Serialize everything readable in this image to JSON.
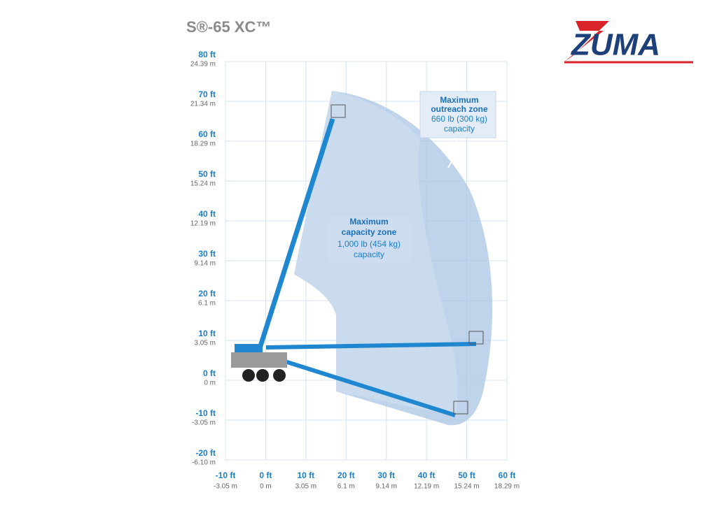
{
  "title": "S®-65 XC™",
  "logo": "ZUMA",
  "y_axis": {
    "ft": [
      "80 ft",
      "70 ft",
      "60 ft",
      "50 ft",
      "40 ft",
      "30 ft",
      "20 ft",
      "10 ft",
      "0 ft",
      "-10 ft",
      "-20 ft"
    ],
    "m": [
      "24.39 m",
      "21.34 m",
      "18.29 m",
      "15.24 m",
      "12.19 m",
      "9.14 m",
      "6.1 m",
      "3.05 m",
      "0 m",
      "-3.05 m",
      "-6.10 m"
    ]
  },
  "x_axis": {
    "ft": [
      "-10 ft",
      "0 ft",
      "10 ft",
      "20 ft",
      "30 ft",
      "40 ft",
      "50 ft",
      "60 ft"
    ],
    "m": [
      "-3.05 m",
      "0 m",
      "3.05 m",
      "6.1 m",
      "9.14 m",
      "12.19 m",
      "15.24 m",
      "18.29 m"
    ]
  },
  "outreach_zone": {
    "heading": [
      "Maximum",
      "outreach zone"
    ],
    "load": "660 lb (300 kg)",
    "note": "capacity"
  },
  "capacity_zone": {
    "heading": [
      "Maximum",
      "capacity zone"
    ],
    "load": "1,000 lb (454 kg)",
    "note": "capacity"
  }
}
